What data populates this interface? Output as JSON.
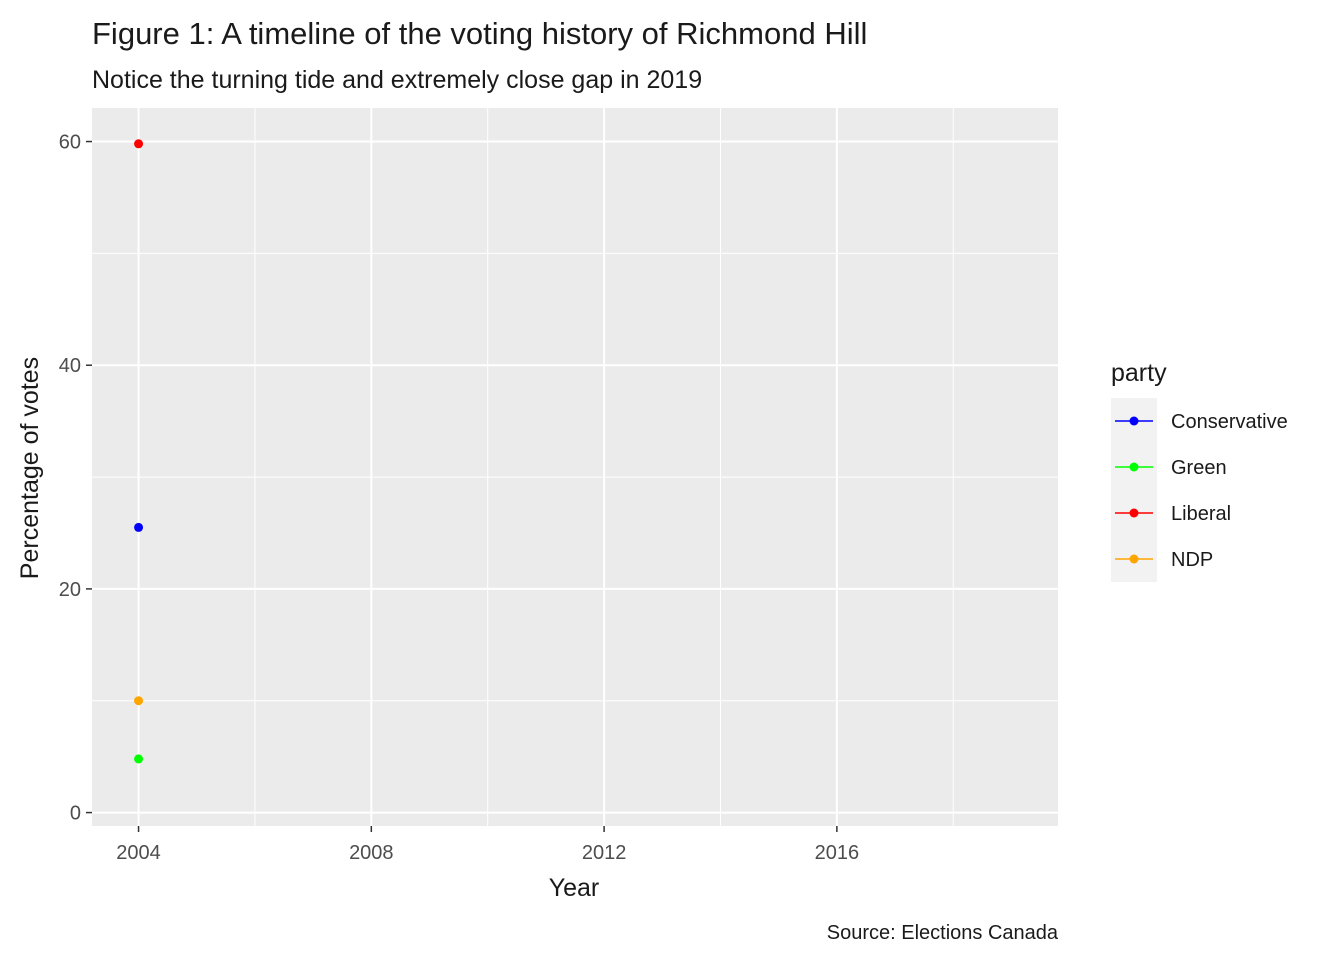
{
  "chart_data": {
    "type": "line",
    "title": "Figure 1: A timeline of the voting history of Richmond Hill",
    "subtitle": "Notice the turning tide and extremely close gap in 2019",
    "xlabel": "Year",
    "ylabel": "Percentage of votes",
    "caption": "Source: Elections Canada",
    "xlim": [
      2003.2,
      2019.8
    ],
    "ylim": [
      -1.2,
      63.0
    ],
    "x_ticks": [
      2004,
      2008,
      2012,
      2016
    ],
    "x_tick_labels": [
      "2004",
      "2008",
      "2012",
      "2016"
    ],
    "y_ticks": [
      0,
      20,
      40,
      60
    ],
    "y_tick_labels": [
      "0",
      "20",
      "40",
      "60"
    ],
    "grid": true,
    "legend": {
      "title": "party",
      "position": "right"
    },
    "series": [
      {
        "name": "Conservative",
        "color": "#0000FF",
        "x": [
          2004
        ],
        "y": [
          25.5
        ]
      },
      {
        "name": "Green",
        "color": "#00FF00",
        "x": [
          2004
        ],
        "y": [
          4.8
        ]
      },
      {
        "name": "Liberal",
        "color": "#FF0000",
        "x": [
          2004
        ],
        "y": [
          59.8
        ]
      },
      {
        "name": "NDP",
        "color": "#FFA500",
        "x": [
          2004
        ],
        "y": [
          10.0
        ]
      }
    ]
  }
}
